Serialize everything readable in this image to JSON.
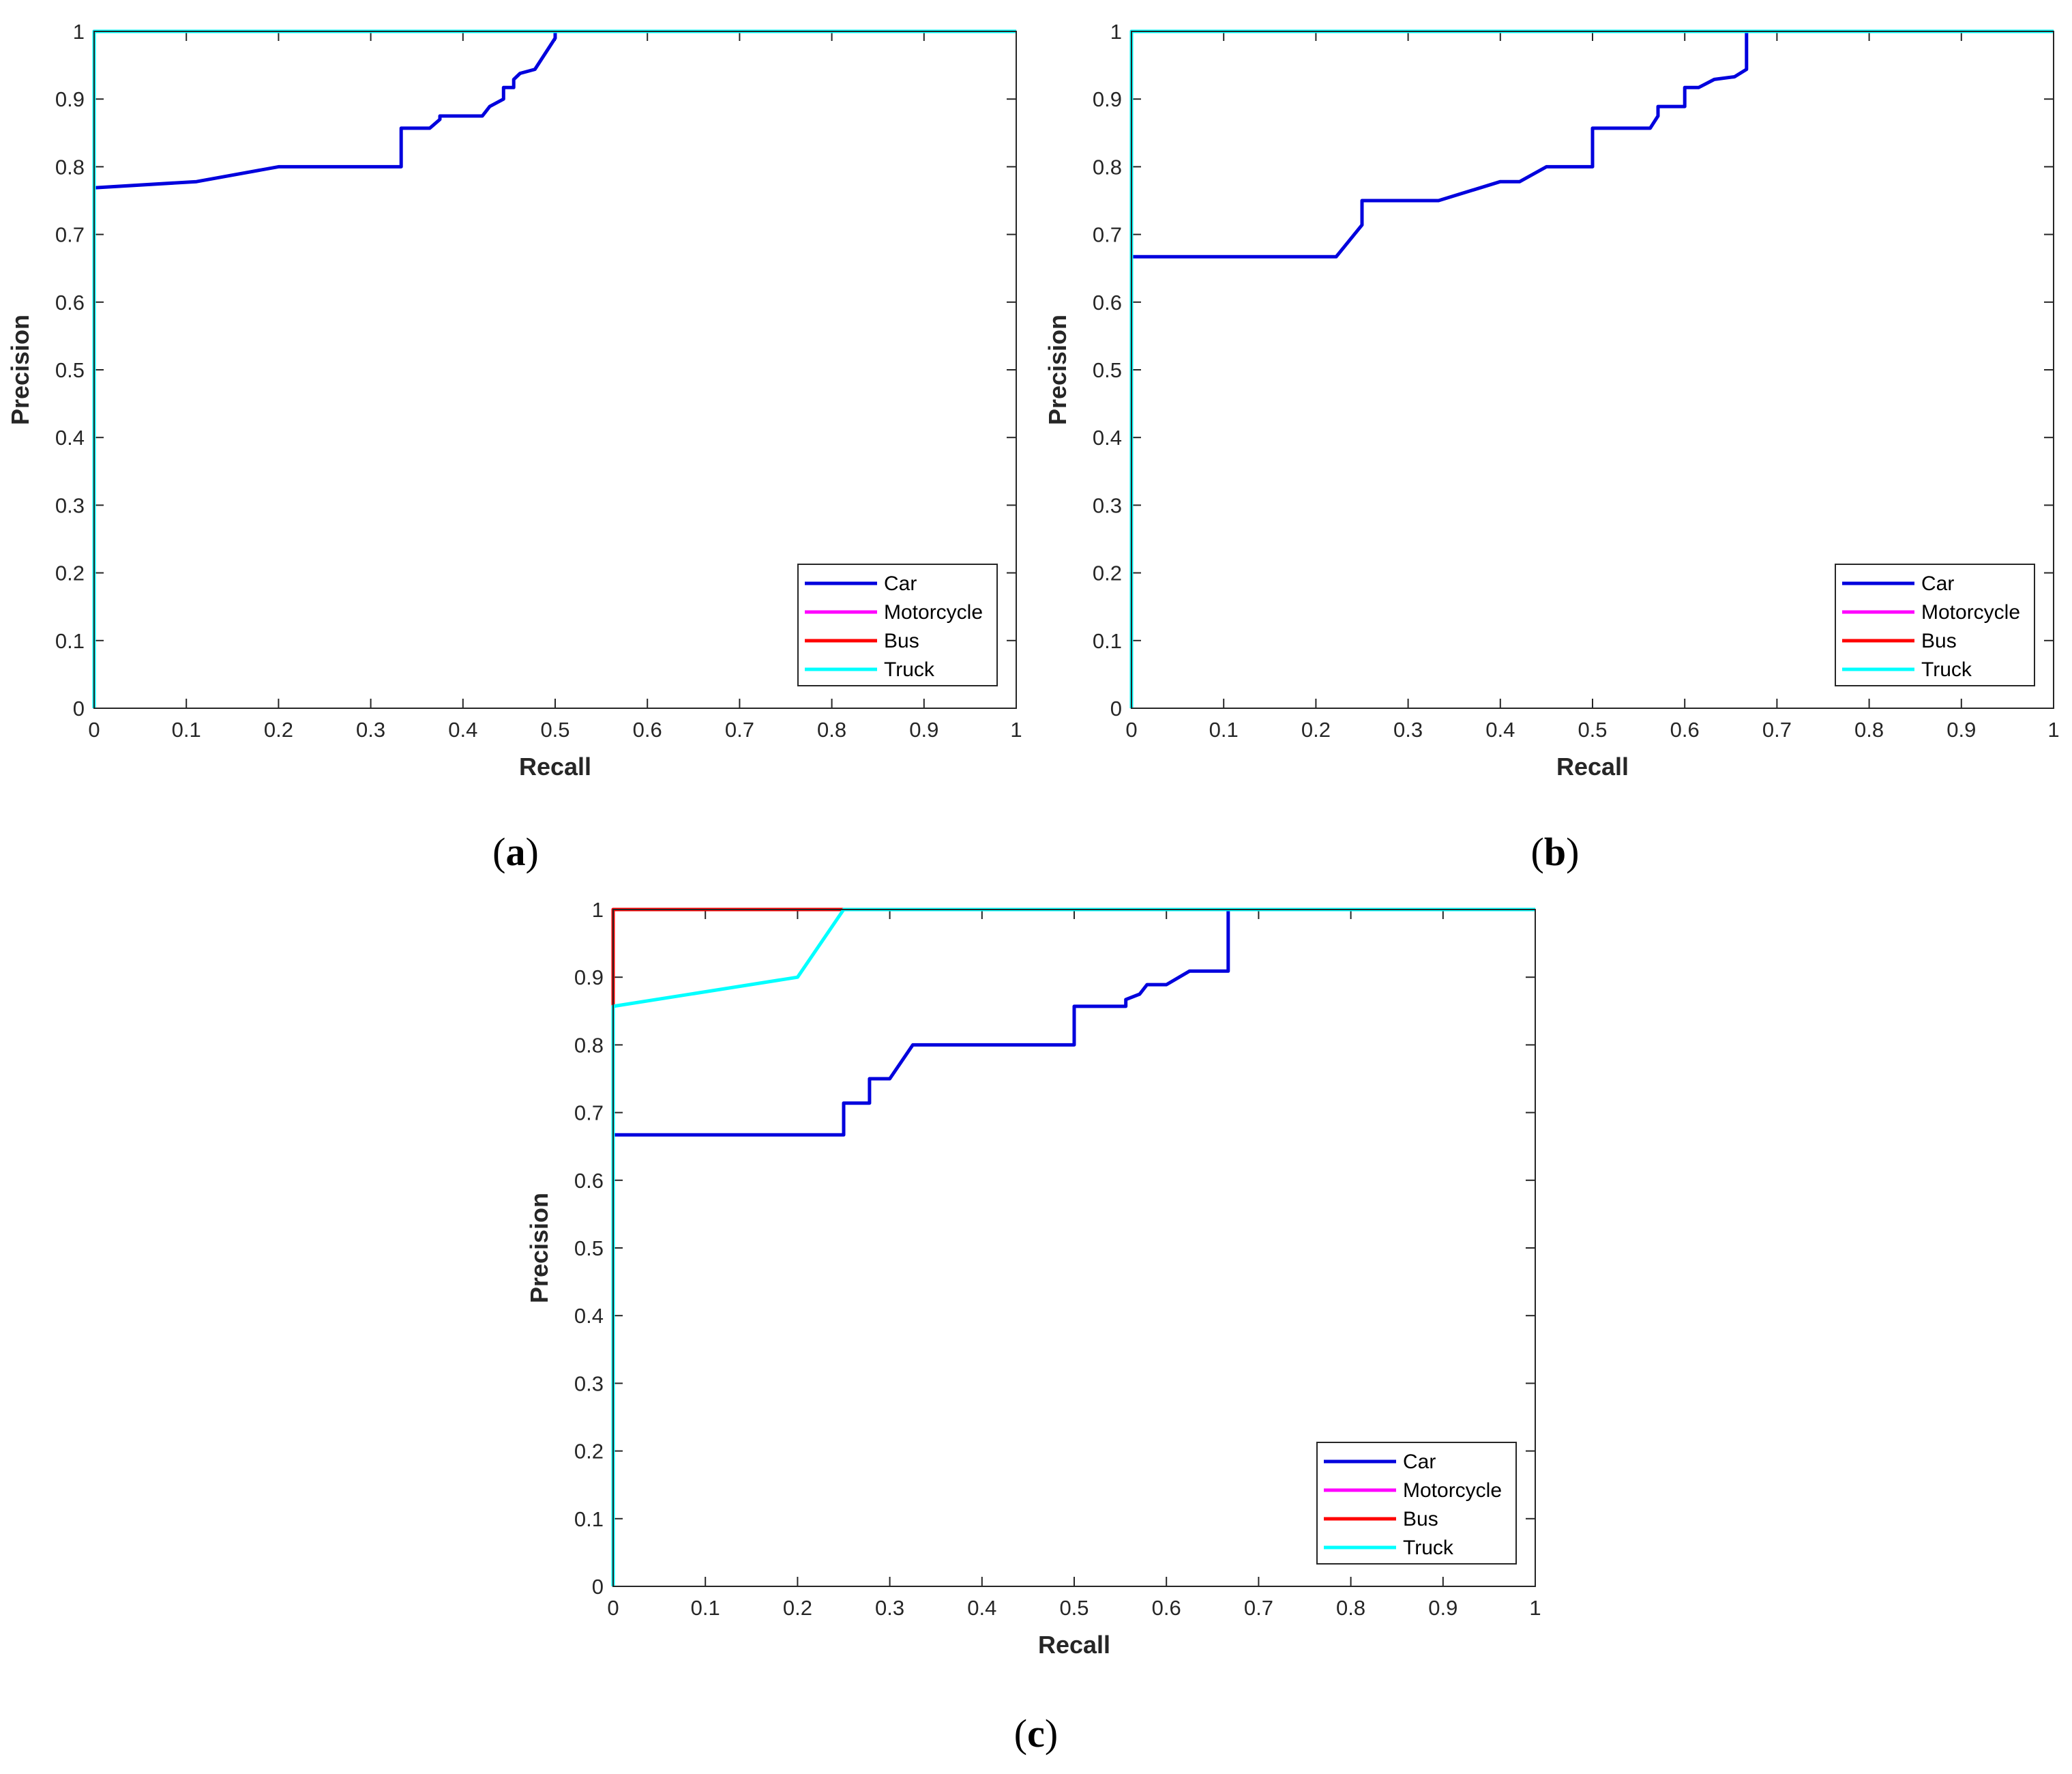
{
  "figure": {
    "panel_labels": [
      {
        "open": "(",
        "letter": "a",
        "close": ")"
      },
      {
        "open": "(",
        "letter": "b",
        "close": ")"
      },
      {
        "open": "(",
        "letter": "c",
        "close": ")"
      }
    ]
  },
  "colors": {
    "Car": "#0000dd",
    "Motorcycle": "#ff00ff",
    "Bus": "#ff0000",
    "Truck": "#00ffff",
    "axes": "#262626"
  },
  "chart_data": [
    {
      "id": "a",
      "type": "line",
      "title": "",
      "xlabel": "Recall",
      "ylabel": "Precision",
      "xlim": [
        0,
        1
      ],
      "ylim": [
        0,
        1
      ],
      "xticks": [
        "0",
        "0.1",
        "0.2",
        "0.3",
        "0.4",
        "0.5",
        "0.6",
        "0.7",
        "0.8",
        "0.9",
        "1"
      ],
      "yticks": [
        "0",
        "0.1",
        "0.2",
        "0.3",
        "0.4",
        "0.5",
        "0.6",
        "0.7",
        "0.8",
        "0.9",
        "1"
      ],
      "grid": false,
      "legend": "bottom-right",
      "legend_entries": [
        "Car",
        "Motorcycle",
        "Bus",
        "Truck"
      ],
      "series": [
        {
          "name": "Motorcycle",
          "x": [
            0,
            0,
            1
          ],
          "y": [
            0,
            1,
            1
          ]
        },
        {
          "name": "Bus",
          "x": [
            0,
            0,
            1
          ],
          "y": [
            0,
            1,
            1
          ]
        },
        {
          "name": "Car",
          "x": [
            0,
            0,
            0.111,
            0.2,
            0.333,
            0.333,
            0.364,
            0.375,
            0.375,
            0.421,
            0.429,
            0.444,
            0.444,
            0.455,
            0.455,
            0.462,
            0.478,
            0.5,
            0.5,
            0.5,
            1
          ],
          "y": [
            0,
            0.769,
            0.778,
            0.8,
            0.8,
            0.857,
            0.857,
            0.87,
            0.875,
            0.875,
            0.889,
            0.9,
            0.917,
            0.917,
            0.929,
            0.938,
            0.944,
            0.99,
            1,
            1,
            1
          ]
        },
        {
          "name": "Truck",
          "x": [
            0,
            0,
            1
          ],
          "y": [
            0,
            1,
            1
          ]
        }
      ]
    },
    {
      "id": "b",
      "type": "line",
      "title": "",
      "xlabel": "Recall",
      "ylabel": "Precision",
      "xlim": [
        0,
        1
      ],
      "ylim": [
        0,
        1
      ],
      "xticks": [
        "0",
        "0.1",
        "0.2",
        "0.3",
        "0.4",
        "0.5",
        "0.6",
        "0.7",
        "0.8",
        "0.9",
        "1"
      ],
      "yticks": [
        "0",
        "0.1",
        "0.2",
        "0.3",
        "0.4",
        "0.5",
        "0.6",
        "0.7",
        "0.8",
        "0.9",
        "1"
      ],
      "grid": false,
      "legend": "bottom-right",
      "legend_entries": [
        "Car",
        "Motorcycle",
        "Bus",
        "Truck"
      ],
      "series": [
        {
          "name": "Motorcycle",
          "x": [
            0,
            0,
            1
          ],
          "y": [
            0,
            1,
            1
          ]
        },
        {
          "name": "Bus",
          "x": [
            0,
            0,
            1
          ],
          "y": [
            0,
            1,
            1
          ]
        },
        {
          "name": "Car",
          "x": [
            0,
            0,
            0.222,
            0.25,
            0.25,
            0.333,
            0.4,
            0.421,
            0.45,
            0.5,
            0.5,
            0.5625,
            0.571,
            0.571,
            0.6,
            0.6,
            0.615,
            0.632,
            0.654,
            0.667,
            0.667,
            1
          ],
          "y": [
            0,
            0.667,
            0.667,
            0.714,
            0.75,
            0.75,
            0.778,
            0.778,
            0.8,
            0.8,
            0.857,
            0.857,
            0.875,
            0.889,
            0.889,
            0.917,
            0.917,
            0.929,
            0.933,
            0.944,
            1,
            1
          ]
        },
        {
          "name": "Truck",
          "x": [
            0,
            0,
            1
          ],
          "y": [
            0,
            1,
            1
          ]
        }
      ]
    },
    {
      "id": "c",
      "type": "line",
      "title": "",
      "xlabel": "Recall",
      "ylabel": "Precision",
      "xlim": [
        0,
        1
      ],
      "ylim": [
        0,
        1
      ],
      "xticks": [
        "0",
        "0.1",
        "0.2",
        "0.3",
        "0.4",
        "0.5",
        "0.6",
        "0.7",
        "0.8",
        "0.9",
        "1"
      ],
      "yticks": [
        "0",
        "0.1",
        "0.2",
        "0.3",
        "0.4",
        "0.5",
        "0.6",
        "0.7",
        "0.8",
        "0.9",
        "1"
      ],
      "grid": false,
      "legend": "bottom-right",
      "legend_entries": [
        "Car",
        "Motorcycle",
        "Bus",
        "Truck"
      ],
      "series": [
        {
          "name": "Motorcycle",
          "x": [
            0,
            0,
            1
          ],
          "y": [
            0,
            1,
            1
          ]
        },
        {
          "name": "Bus",
          "x": [
            0,
            0,
            0.25,
            1
          ],
          "y": [
            0.857,
            1,
            1,
            1
          ]
        },
        {
          "name": "Car",
          "x": [
            0,
            0,
            0.25,
            0.25,
            0.278,
            0.278,
            0.3,
            0.325,
            0.5,
            0.5,
            0.556,
            0.556,
            0.571,
            0.579,
            0.6,
            0.625,
            0.667,
            0.667,
            1
          ],
          "y": [
            0,
            0.667,
            0.667,
            0.714,
            0.714,
            0.75,
            0.75,
            0.8,
            0.8,
            0.857,
            0.857,
            0.867,
            0.875,
            0.889,
            0.889,
            0.909,
            0.909,
            1,
            1
          ]
        },
        {
          "name": "Truck",
          "x": [
            0,
            0,
            0.2,
            0.25,
            1
          ],
          "y": [
            0,
            0.857,
            0.9,
            1,
            1
          ]
        }
      ]
    }
  ]
}
